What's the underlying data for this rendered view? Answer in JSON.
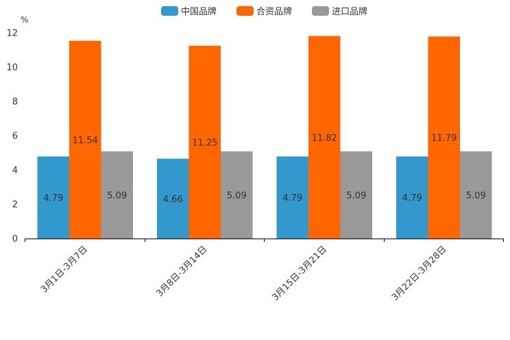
{
  "chart_data": {
    "type": "bar",
    "unit": "%",
    "categories": [
      "3月1日-3月7日",
      "3月8日-3月14日",
      "3月15日-3月21日",
      "3月22日-3月28日"
    ],
    "series": [
      {
        "name": "中国品牌",
        "color": "#3399CC",
        "values": [
          4.79,
          4.66,
          4.79,
          4.79
        ]
      },
      {
        "name": "合资品牌",
        "color": "#FF6600",
        "values": [
          11.54,
          11.25,
          11.82,
          11.79
        ]
      },
      {
        "name": "进口品牌",
        "color": "#999999",
        "values": [
          5.09,
          5.09,
          5.09,
          5.09
        ]
      }
    ],
    "ylim": [
      0,
      12
    ],
    "yticks": [
      "0",
      "2",
      "4",
      "6",
      "8",
      "10",
      "12"
    ],
    "data_labels": [
      [
        "4.79",
        "4.66",
        "4.79",
        "4.79"
      ],
      [
        "11.54",
        "11.25",
        "11.82",
        "11.79"
      ],
      [
        "5.09",
        "5.09",
        "5.09",
        "5.09"
      ]
    ],
    "legend_position": "top-center",
    "grid": false
  }
}
